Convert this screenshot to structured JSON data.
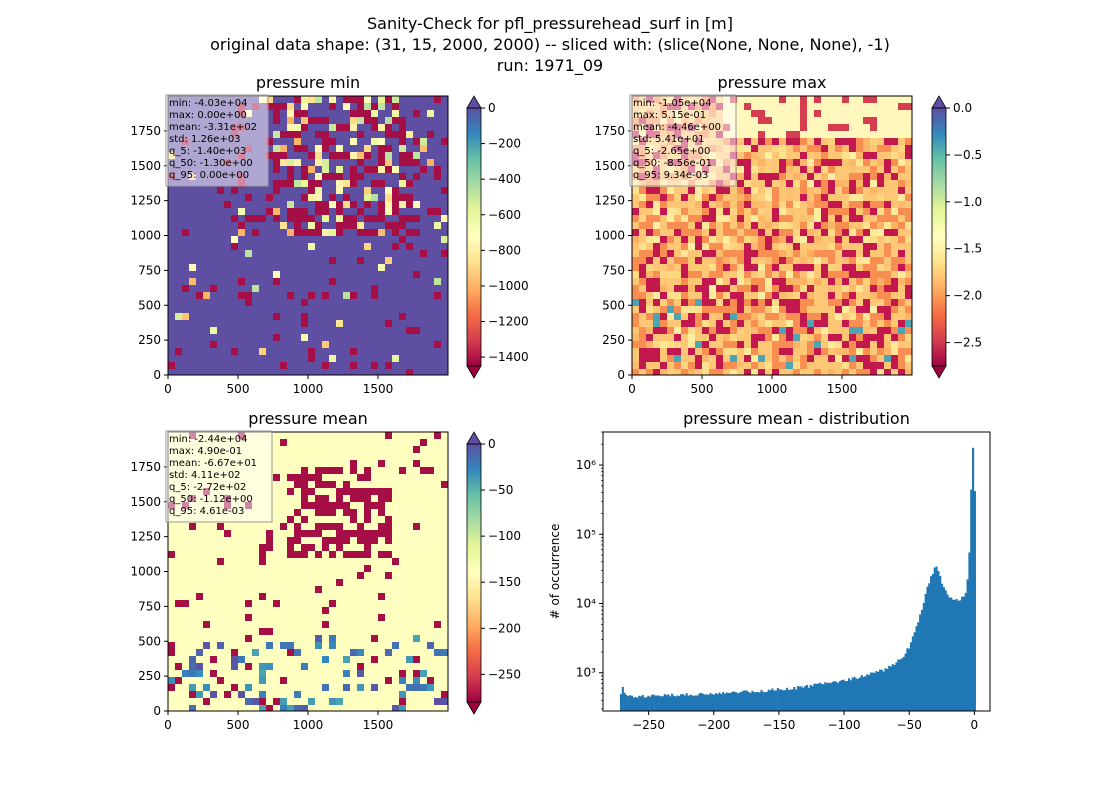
{
  "figure": {
    "title_lines": [
      "Sanity-Check for pfl_pressurehead_surf in [m]",
      "original data shape: (31, 15, 2000, 2000) -- sliced with: (slice(None, None, None), -1)",
      "run: 1971_09"
    ]
  },
  "chart_data": [
    {
      "type": "heatmap",
      "title": "pressure min",
      "xlim": [
        0,
        2000
      ],
      "ylim": [
        0,
        2000
      ],
      "xticks": [
        0,
        500,
        1000,
        1500
      ],
      "yticks": [
        0,
        250,
        500,
        750,
        1000,
        1250,
        1500,
        1750
      ],
      "colormap": "Spectral",
      "colorbar": {
        "range": [
          -1450,
          0
        ],
        "ticks": [
          0,
          -200,
          -400,
          -600,
          -800,
          -1000,
          -1200,
          -1400
        ],
        "extend": "both"
      },
      "stats": [
        "min: -4.03e+04",
        "max: 0.00e+00",
        "mean: -3.31e+02",
        "std: 1.26e+03",
        "q_5: -1.40e+03",
        "q_50: -1.30e+00",
        "q_95: 0.00e+00"
      ],
      "base_color": "#5e4fa2"
    },
    {
      "type": "heatmap",
      "title": "pressure max",
      "xlim": [
        0,
        2000
      ],
      "ylim": [
        0,
        2000
      ],
      "xticks": [
        0,
        500,
        1000,
        1500
      ],
      "yticks": [
        0,
        250,
        500,
        750,
        1000,
        1250,
        1500,
        1750
      ],
      "colormap": "Spectral",
      "colorbar": {
        "range": [
          -2.75,
          0
        ],
        "ticks": [
          "0.0",
          "-0.5",
          "-1.0",
          "-1.5",
          "-2.0",
          "-2.5"
        ],
        "tick_values": [
          0,
          -0.5,
          -1.0,
          -1.5,
          -2.0,
          -2.5
        ],
        "extend": "both"
      },
      "stats": [
        "min: -1.05e+04",
        "max: 5.15e-01",
        "mean: -4.46e+00",
        "std: 5.41e+01",
        "q_5: -2.65e+00",
        "q_50: -8.56e-01",
        "q_95: 9.34e-03"
      ],
      "base_color": "#fdae61"
    },
    {
      "type": "heatmap",
      "title": "pressure mean",
      "xlim": [
        0,
        2000
      ],
      "ylim": [
        0,
        2000
      ],
      "xticks": [
        0,
        500,
        1000,
        1500
      ],
      "yticks": [
        0,
        250,
        500,
        750,
        1000,
        1250,
        1500,
        1750
      ],
      "colormap": "Spectral",
      "colorbar": {
        "range": [
          -280,
          0
        ],
        "ticks": [
          0,
          -50,
          -100,
          -150,
          -200,
          -250
        ],
        "extend": "both"
      },
      "stats": [
        "min: -2.44e+04",
        "max: 4.90e-01",
        "mean: -6.67e+01",
        "std: 4.11e+02",
        "q_5: -2.72e+02",
        "q_50: -1.12e+00",
        "q_95: 4.61e-03"
      ],
      "base_color": "#ffffbf"
    },
    {
      "type": "bar",
      "title": "pressure mean - distribution",
      "ylabel": "# of occurrence",
      "xlabel": "",
      "yscale": "log",
      "xlim": [
        -285,
        12
      ],
      "ylim": [
        280,
        3000000
      ],
      "xticks": [
        -250,
        -200,
        -150,
        -100,
        -50,
        0
      ],
      "yticks": [
        {
          "value": 1000,
          "label": "10³"
        },
        {
          "value": 10000,
          "label": "10⁴"
        },
        {
          "value": 100000,
          "label": "10⁵"
        },
        {
          "value": 1000000,
          "label": "10⁶"
        }
      ],
      "bar_color": "#1f77b4",
      "x": [
        -272,
        -270,
        -268,
        -260,
        -240,
        -220,
        -200,
        -180,
        -160,
        -140,
        -120,
        -100,
        -90,
        -80,
        -70,
        -60,
        -55,
        -50,
        -45,
        -40,
        -35,
        -30,
        -28,
        -25,
        -22,
        -20,
        -15,
        -10,
        -6,
        -4,
        -2,
        -1,
        0
      ],
      "values": [
        450,
        600,
        500,
        450,
        470,
        490,
        500,
        520,
        560,
        600,
        680,
        780,
        850,
        960,
        1100,
        1400,
        1700,
        2400,
        4200,
        9000,
        20000,
        35000,
        30000,
        20000,
        15000,
        13000,
        11500,
        12000,
        15000,
        50000,
        1000000,
        2000000,
        450000
      ]
    }
  ]
}
